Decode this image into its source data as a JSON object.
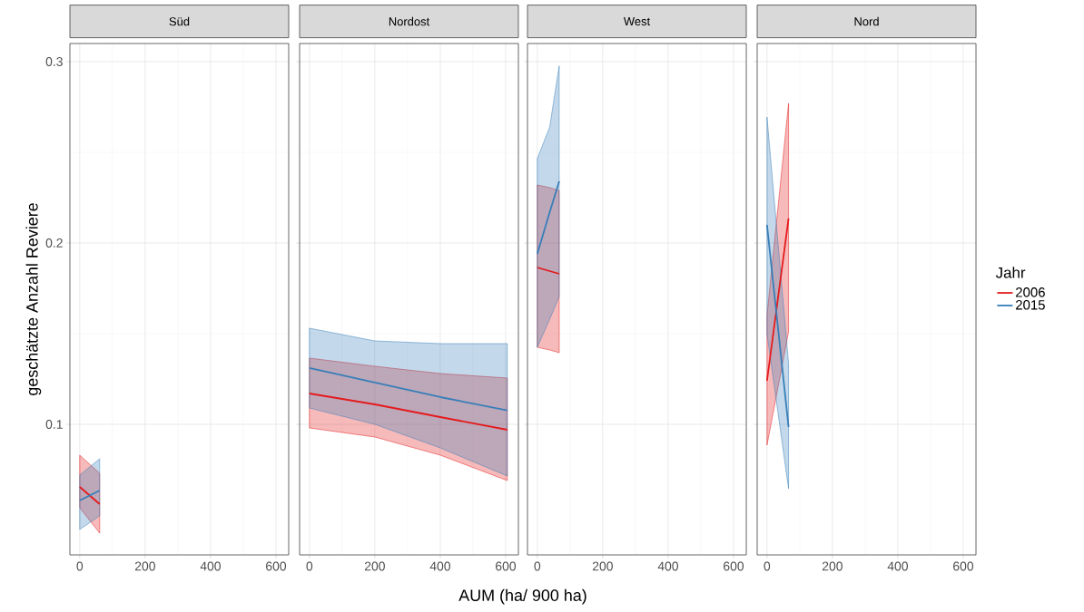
{
  "chart_data": [
    {
      "type": "line",
      "title": "Süd",
      "ylabel": "geschätzte Anzahl Reviere",
      "x": [
        0,
        61
      ],
      "xlim": [
        -30,
        639
      ],
      "ylim": [
        0.028,
        0.31
      ],
      "xticks": [
        0,
        200,
        400,
        600
      ],
      "yticks": [
        0.1,
        0.2,
        0.3
      ],
      "grid": true,
      "series": [
        {
          "color": "#e41a1c",
          "values": [
            0.0655,
            0.056
          ],
          "lower": [
            0.054,
            0.04
          ],
          "upper": [
            0.083,
            0.073
          ]
        },
        {
          "color": "#377eb8",
          "values": [
            0.058,
            0.0635
          ],
          "lower": [
            0.042,
            0.0495
          ],
          "upper": [
            0.072,
            0.081
          ]
        }
      ]
    },
    {
      "type": "line",
      "title": "Nordost",
      "xlabel": "AUM (ha/ 900 ha)",
      "x": [
        0,
        200,
        400,
        605
      ],
      "xlim": [
        -30,
        639
      ],
      "ylim": [
        0.028,
        0.31
      ],
      "xticks": [
        0,
        200,
        400,
        600
      ],
      "yticks": [
        0.1,
        0.2,
        0.3
      ],
      "grid": true,
      "tick_labels": "x",
      "series": [
        {
          "color": "#e41a1c",
          "values": [
            0.117,
            0.111,
            0.104,
            0.097
          ],
          "lower": [
            0.098,
            0.093,
            0.083,
            0.069
          ],
          "upper": [
            0.1365,
            0.132,
            0.128,
            0.1255
          ]
        },
        {
          "color": "#377eb8",
          "values": [
            0.131,
            0.123,
            0.115,
            0.1077
          ],
          "lower": [
            0.109,
            0.1,
            0.087,
            0.0715
          ],
          "upper": [
            0.153,
            0.146,
            0.1445,
            0.1445
          ]
        }
      ]
    },
    {
      "type": "line",
      "title": "West",
      "x": [
        0,
        38,
        67
      ],
      "xlim": [
        -30,
        639
      ],
      "ylim": [
        0.028,
        0.31
      ],
      "xticks": [
        0,
        200,
        400,
        600
      ],
      "yticks": [
        0.1,
        0.2,
        0.3
      ],
      "grid": true,
      "tick_labels": "x",
      "series": [
        {
          "color": "#e41a1c",
          "values": [
            0.1865,
            0.1845,
            0.183
          ],
          "lower": [
            0.1425,
            0.141,
            0.1395
          ],
          "upper": [
            0.232,
            0.2305,
            0.229
          ]
        },
        {
          "color": "#377eb8",
          "values": [
            0.194,
            0.217,
            0.234
          ],
          "lower": [
            0.1425,
            0.158,
            0.1705
          ],
          "upper": [
            0.2465,
            0.264,
            0.2977
          ]
        }
      ]
    },
    {
      "type": "line",
      "title": "Nord",
      "x": [
        0,
        66
      ],
      "xlim": [
        -30,
        639
      ],
      "ylim": [
        0.028,
        0.31
      ],
      "xticks": [
        0,
        200,
        400,
        600
      ],
      "yticks": [
        0.1,
        0.2,
        0.3
      ],
      "grid": true,
      "tick_labels": "x",
      "legend": "right",
      "legend_title": "Jahr",
      "series": [
        {
          "name": "2006",
          "color": "#e41a1c",
          "values": [
            0.124,
            0.2135
          ],
          "lower": [
            0.0885,
            0.151
          ],
          "upper": [
            0.16,
            0.277
          ]
        },
        {
          "name": "2015",
          "color": "#377eb8",
          "values": [
            0.21,
            0.0985
          ],
          "lower": [
            0.15,
            0.0645
          ],
          "upper": [
            0.2695,
            0.1335
          ]
        }
      ]
    }
  ]
}
